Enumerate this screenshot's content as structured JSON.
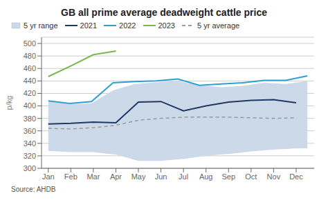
{
  "chart_data": {
    "type": "line",
    "title": "GB all prime average deadweight cattle price",
    "ylabel": "p/kg",
    "source": "Source: AHDB",
    "xlim": [
      -0.3,
      11.8
    ],
    "xticks": [
      {
        "value": 0,
        "label": "Jan"
      },
      {
        "value": 1,
        "label": "Feb"
      },
      {
        "value": 2,
        "label": "Mar"
      },
      {
        "value": 3,
        "label": "Apr"
      },
      {
        "value": 4,
        "label": "May"
      },
      {
        "value": 5,
        "label": "Jun"
      },
      {
        "value": 6,
        "label": "Jul"
      },
      {
        "value": 7,
        "label": "Aug"
      },
      {
        "value": 8,
        "label": "Sep"
      },
      {
        "value": 9,
        "label": "Oct"
      },
      {
        "value": 10,
        "label": "Nov"
      },
      {
        "value": 11,
        "label": "Dec"
      }
    ],
    "ylim": [
      300,
      510
    ],
    "yticks": [
      300,
      320,
      340,
      360,
      380,
      400,
      420,
      440,
      460,
      480,
      500
    ],
    "grid": "y",
    "legend": "top",
    "series": [
      {
        "name": "5 yr range",
        "type": "range",
        "color": "#ccd9e8",
        "x_upper": [
          0,
          0.9583333333333334,
          1.9166666666666667,
          2.875,
          3.8333333333333335,
          4.791666666666667,
          5.75,
          6.708333333333334,
          7.666666666666667,
          8.625,
          9.583333333333334,
          10.541666666666668,
          11.5
        ],
        "upper": [
          408,
          403,
          404,
          425,
          435,
          438,
          440,
          433,
          430,
          432,
          437,
          435,
          440
        ],
        "x_lower": [
          0,
          1,
          2,
          3,
          4,
          5,
          6,
          7,
          8,
          9,
          10,
          11
        ],
        "lower": [
          328,
          326,
          326,
          322,
          312,
          312,
          315,
          320,
          323,
          327,
          330,
          332
        ]
      },
      {
        "name": "2021",
        "color": "#1f3864",
        "x": [
          0,
          1,
          2,
          3,
          4,
          5,
          6,
          7,
          8,
          9,
          10,
          11
        ],
        "values": [
          371,
          372,
          374,
          373,
          406,
          407,
          392,
          400,
          406,
          409,
          410,
          405
        ]
      },
      {
        "name": "2022",
        "color": "#2e9fd4",
        "x": [
          0,
          0.9583333333333334,
          1.9166666666666667,
          2.875,
          3.8333333333333335,
          4.791666666666667,
          5.75,
          6.708333333333334,
          7.666666666666667,
          8.625,
          9.583333333333334,
          10.541666666666668,
          11.5
        ],
        "values": [
          408,
          404,
          407,
          437,
          439,
          440,
          443,
          433,
          435,
          437,
          441,
          441,
          448
        ]
      },
      {
        "name": "2023",
        "color": "#7ab648",
        "x": [
          0,
          1,
          2,
          3
        ],
        "values": [
          447,
          464,
          482,
          488
        ]
      },
      {
        "name": "5 yr average",
        "color": "#999999",
        "line_style": "dashed",
        "x": [
          0,
          1,
          2,
          3,
          4,
          5,
          6,
          7,
          8,
          9,
          10,
          11
        ],
        "values": [
          364,
          363,
          365,
          369,
          377,
          380,
          382,
          382,
          382,
          381,
          380,
          381
        ]
      }
    ]
  }
}
